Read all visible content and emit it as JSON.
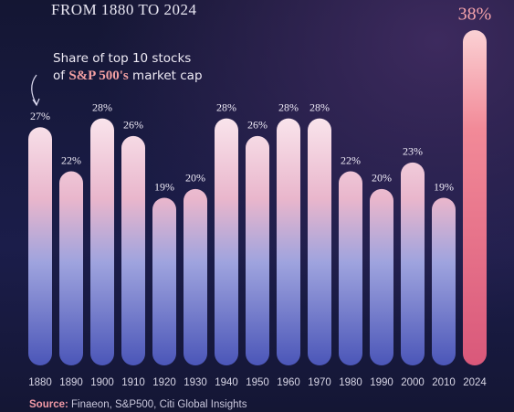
{
  "chart_data": {
    "type": "bar",
    "title": "FROM 1880 TO 2024",
    "annotation": {
      "line1": "Share of top 10 stocks",
      "line2_start": "of",
      "highlight": "S&P 500's",
      "line2_end": "market cap"
    },
    "categories": [
      "1880",
      "1890",
      "1900",
      "1910",
      "1920",
      "1930",
      "1940",
      "1950",
      "1960",
      "1970",
      "1980",
      "1990",
      "2000",
      "2010",
      "2024"
    ],
    "values": [
      27,
      22,
      28,
      26,
      19,
      20,
      28,
      26,
      28,
      28,
      22,
      20,
      23,
      19,
      38
    ],
    "value_labels": [
      "27%",
      "22%",
      "28%",
      "26%",
      "19%",
      "20%",
      "28%",
      "26%",
      "28%",
      "28%",
      "22%",
      "20%",
      "23%",
      "19%",
      "38%"
    ],
    "highlight": "2024",
    "source": {
      "label": "Source:",
      "text": "Finaeon, S&P500, Citi Global Insights"
    }
  }
}
